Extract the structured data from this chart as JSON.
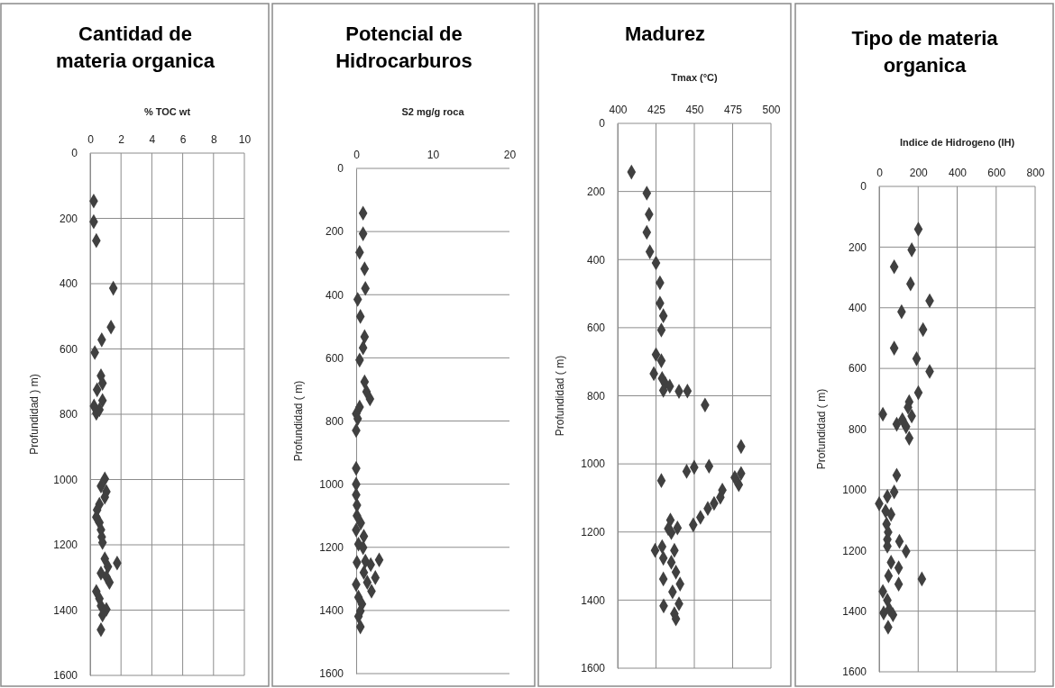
{
  "chart_data": [
    {
      "type": "scatter",
      "title": "Cantidad de materia organica",
      "xlabel": "% TOC wt",
      "ylabel": "Profundidad ) m)",
      "xlim": [
        0,
        10
      ],
      "xticks": [
        0,
        2,
        4,
        6,
        8,
        10
      ],
      "ylim": [
        1600,
        0
      ],
      "yticks": [
        0,
        200,
        400,
        600,
        800,
        1000,
        1200,
        1400,
        1600
      ],
      "grid": true,
      "marker": "diamond",
      "series": [
        {
          "color": "#404040",
          "x": [
            0.23,
            0.23,
            0.4,
            1.5,
            1.35,
            0.75,
            0.3,
            0.7,
            0.8,
            0.45,
            0.8,
            0.25,
            0.6,
            0.4,
            0.95,
            0.7,
            1.05,
            0.95,
            0.6,
            0.45,
            0.4,
            0.6,
            0.7,
            0.75,
            0.8,
            0.95,
            1.75,
            1.15,
            0.7,
            1.05,
            1.25,
            0.4,
            0.6,
            0.7,
            1.05,
            0.8,
            0.7
          ],
          "values": [
            147,
            210,
            268,
            414,
            533,
            572,
            611,
            682,
            705,
            725,
            758,
            775,
            786,
            797,
            998,
            1020,
            1037,
            1054,
            1076,
            1093,
            1115,
            1132,
            1154,
            1176,
            1193,
            1243,
            1256,
            1267,
            1287,
            1298,
            1315,
            1343,
            1365,
            1387,
            1398,
            1415,
            1460
          ]
        }
      ]
    },
    {
      "type": "scatter",
      "title": "Potencial de Hidrocarburos",
      "xlabel": "S2 mg/g roca",
      "ylabel": "Profundidad ( m)",
      "xlim": [
        0,
        20
      ],
      "xticks": [
        0,
        10,
        20
      ],
      "ylim": [
        1600,
        0
      ],
      "yticks": [
        0,
        200,
        400,
        600,
        800,
        1000,
        1200,
        1400,
        1600
      ],
      "grid": "y",
      "marker": "diamond",
      "series": [
        {
          "color": "#404040",
          "x": [
            0.9,
            0.9,
            0.45,
            1.1,
            1.2,
            0.2,
            0.55,
            1.1,
            0.9,
            0.45,
            1.1,
            1.35,
            1.8,
            0.45,
            0,
            0.2,
            0,
            0,
            0,
            0,
            0.1,
            0.1,
            0.6,
            0,
            1.0,
            0.3,
            0.9,
            3.0,
            1.2,
            0.1,
            1.9,
            1.0,
            2.5,
            1.45,
            0,
            2.0,
            0.3,
            0.75,
            0.55,
            0.3,
            0.55
          ],
          "values": [
            142,
            207,
            266,
            318,
            380,
            415,
            469,
            533,
            568,
            607,
            676,
            707,
            730,
            756,
            777,
            793,
            830,
            950,
            1000,
            1034,
            1067,
            1100,
            1123,
            1145,
            1165,
            1190,
            1201,
            1240,
            1244,
            1248,
            1255,
            1280,
            1296,
            1311,
            1318,
            1339,
            1358,
            1380,
            1402,
            1419,
            1452
          ]
        }
      ]
    },
    {
      "type": "scatter",
      "title": "Madurez",
      "xlabel": "Tmax  (°C)",
      "ylabel": "Profundidad ( m)",
      "xlim": [
        400,
        500
      ],
      "xticks": [
        400,
        425,
        450,
        475,
        500
      ],
      "ylim": [
        1600,
        0
      ],
      "yticks": [
        0,
        200,
        400,
        600,
        800,
        1000,
        1200,
        1400,
        1600
      ],
      "grid": true,
      "marker": "diamond",
      "series": [
        {
          "color": "#404040",
          "x": [
            409,
            419,
            420.5,
            419,
            421,
            425,
            427.6,
            427.6,
            429.8,
            428.5,
            425,
            428.5,
            423.6,
            429,
            431,
            434,
            429.8,
            440,
            445.5,
            457,
            480.5,
            459.6,
            449.9,
            445,
            428.5,
            480.5,
            476.4,
            479,
            468.3,
            467,
            462.9,
            458.8,
            454,
            449.3,
            434.4,
            433,
            439,
            435,
            424.4,
            429,
            437,
            429.8,
            435,
            438,
            440.7,
            429.8,
            435.8,
            440,
            430,
            437,
            438
          ],
          "values": [
            143,
            205,
            267,
            320,
            377,
            410,
            468,
            528,
            565,
            607,
            679,
            697,
            735,
            749,
            764,
            772,
            784,
            787,
            786,
            827,
            949,
            1007,
            1010,
            1022,
            1049,
            1028,
            1040,
            1061,
            1077,
            1098,
            1116,
            1131,
            1157,
            1179,
            1165,
            1190,
            1188,
            1202,
            1254,
            1243,
            1254,
            1277,
            1289,
            1318,
            1353,
            1338,
            1376,
            1411,
            1417,
            1440,
            1455
          ]
        }
      ]
    },
    {
      "type": "scatter",
      "title": "Tipo de materia organica",
      "xlabel": "Indice de Hidrogeno (IH)",
      "ylabel": "Profundidad ( m)",
      "xlim": [
        0,
        800
      ],
      "xticks": [
        0,
        200,
        400,
        600,
        800
      ],
      "ylim": [
        1600,
        0
      ],
      "yticks": [
        0,
        200,
        400,
        600,
        800,
        1000,
        1200,
        1400,
        1600
      ],
      "grid": true,
      "marker": "diamond",
      "series": [
        {
          "color": "#404040",
          "x": [
            201,
            167,
            77,
            161,
            259,
            115,
            225,
            77,
            192,
            259,
            201,
            154,
            148,
            19,
            167,
            119,
            90,
            138,
            154,
            90,
            77,
            42,
            0,
            33,
            61,
            38,
            46,
            42,
            104,
            138,
            42,
            61,
            100,
            48,
            219,
            100,
            19,
            42,
            52,
            23,
            71,
            46
          ],
          "values": [
            141,
            209,
            265,
            321,
            377,
            413,
            472,
            533,
            568,
            610,
            680,
            710,
            728,
            751,
            757,
            769,
            784,
            792,
            830,
            952,
            1007,
            1022,
            1046,
            1070,
            1081,
            1113,
            1140,
            1164,
            1170,
            1203,
            1186,
            1239,
            1257,
            1284,
            1294,
            1311,
            1335,
            1364,
            1394,
            1406,
            1412,
            1453
          ]
        }
      ]
    }
  ]
}
